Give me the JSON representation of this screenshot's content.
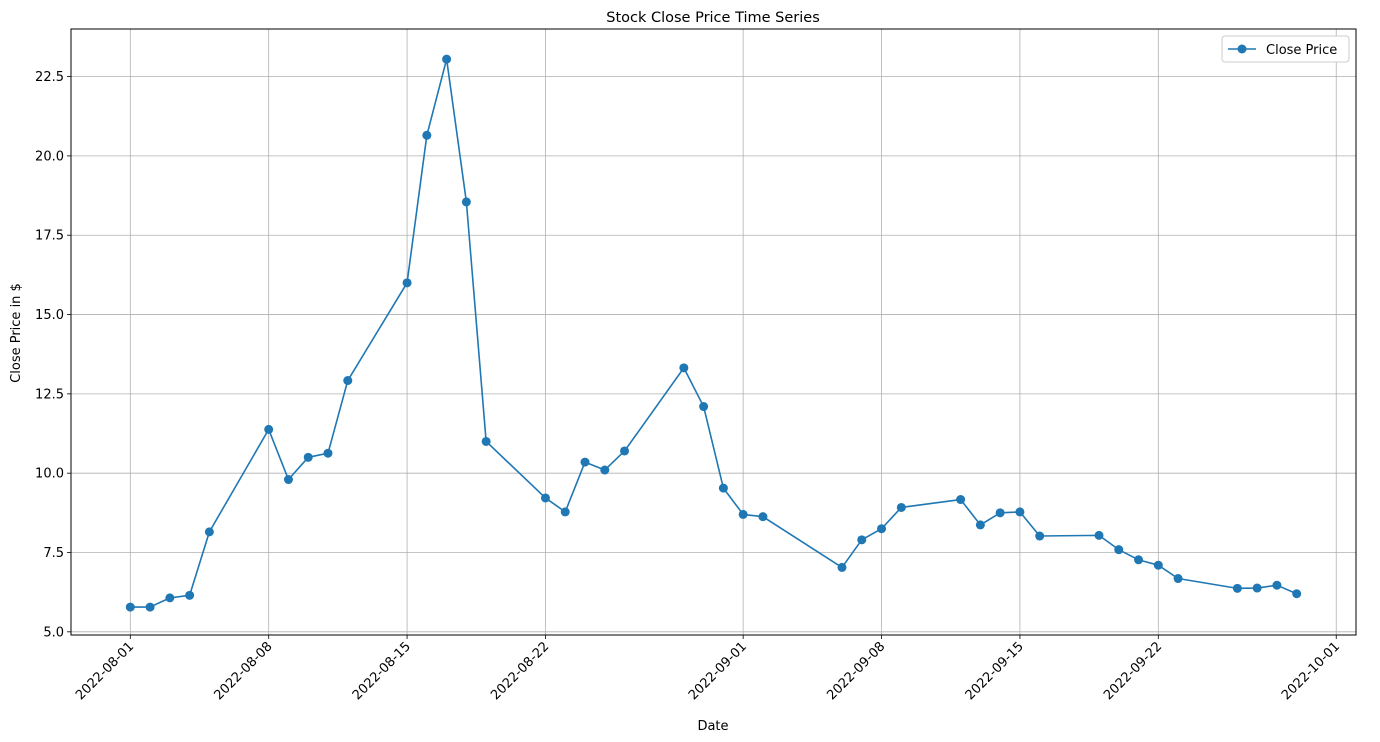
{
  "chart_data": {
    "type": "line",
    "title": "Stock Close Price Time Series",
    "xlabel": "Date",
    "ylabel": "Close Price in $",
    "grid": true,
    "legend_position": "top-right",
    "xlim": [
      "2022-07-29",
      "2022-10-02"
    ],
    "ylim": [
      4.9,
      24
    ],
    "x_ticks": [
      "2022-08-01",
      "2022-08-08",
      "2022-08-15",
      "2022-08-22",
      "2022-09-01",
      "2022-09-08",
      "2022-09-15",
      "2022-09-22",
      "2022-10-01"
    ],
    "y_ticks": [
      5.0,
      7.5,
      10.0,
      12.5,
      15.0,
      17.5,
      20.0,
      22.5
    ],
    "series": [
      {
        "name": "Close Price",
        "color": "#1f77b4",
        "marker": "circle",
        "x": [
          "2022-08-01",
          "2022-08-02",
          "2022-08-03",
          "2022-08-04",
          "2022-08-05",
          "2022-08-08",
          "2022-08-09",
          "2022-08-10",
          "2022-08-11",
          "2022-08-12",
          "2022-08-15",
          "2022-08-16",
          "2022-08-17",
          "2022-08-18",
          "2022-08-19",
          "2022-08-22",
          "2022-08-23",
          "2022-08-24",
          "2022-08-25",
          "2022-08-26",
          "2022-08-29",
          "2022-08-30",
          "2022-08-31",
          "2022-09-01",
          "2022-09-02",
          "2022-09-06",
          "2022-09-07",
          "2022-09-08",
          "2022-09-09",
          "2022-09-12",
          "2022-09-13",
          "2022-09-14",
          "2022-09-15",
          "2022-09-16",
          "2022-09-19",
          "2022-09-20",
          "2022-09-21",
          "2022-09-22",
          "2022-09-23",
          "2022-09-26",
          "2022-09-27",
          "2022-09-28",
          "2022-09-29"
        ],
        "values": [
          5.78,
          5.78,
          6.07,
          6.15,
          8.15,
          11.38,
          9.8,
          10.5,
          10.63,
          12.92,
          16.0,
          20.65,
          23.05,
          18.55,
          11.0,
          9.22,
          8.78,
          10.35,
          10.1,
          10.7,
          13.32,
          12.1,
          9.53,
          8.7,
          8.63,
          7.03,
          7.9,
          8.25,
          8.92,
          9.17,
          8.37,
          8.75,
          8.78,
          8.02,
          8.04,
          7.59,
          7.27,
          7.1,
          6.68,
          6.37,
          6.38,
          6.47,
          6.2
        ]
      }
    ]
  }
}
